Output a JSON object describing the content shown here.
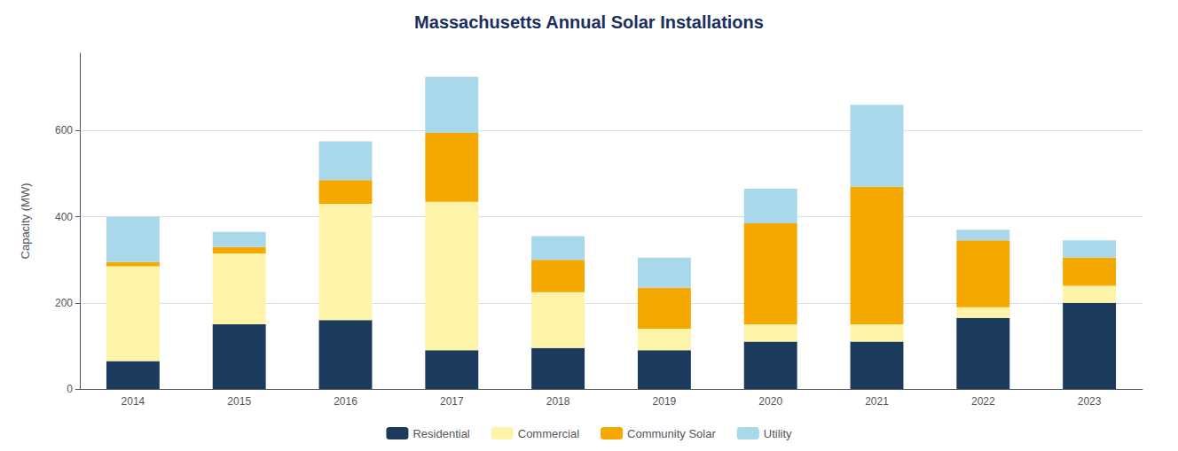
{
  "chart_data": {
    "type": "bar",
    "stacked": true,
    "title": "Massachusetts Annual Solar Installations",
    "ylabel": "Capacity (MW)",
    "categories": [
      "2014",
      "2015",
      "2016",
      "2017",
      "2018",
      "2019",
      "2020",
      "2021",
      "2022",
      "2023"
    ],
    "series": [
      {
        "name": "Residential",
        "color": "#1b3a5c",
        "values": [
          65,
          150,
          160,
          90,
          95,
          90,
          110,
          110,
          165,
          200
        ]
      },
      {
        "name": "Commercial",
        "color": "#fdf4aa",
        "values": [
          220,
          165,
          270,
          345,
          130,
          50,
          40,
          40,
          25,
          40
        ]
      },
      {
        "name": "Community Solar",
        "color": "#f5a800",
        "values": [
          10,
          15,
          55,
          160,
          75,
          95,
          235,
          320,
          155,
          65
        ]
      },
      {
        "name": "Utility",
        "color": "#a8d8ea",
        "values": [
          105,
          35,
          90,
          130,
          55,
          70,
          80,
          190,
          25,
          40
        ]
      }
    ],
    "ylim": [
      0,
      780
    ],
    "yticks": [
      0,
      200,
      400,
      600
    ],
    "grid": true,
    "legend": "bottom"
  }
}
